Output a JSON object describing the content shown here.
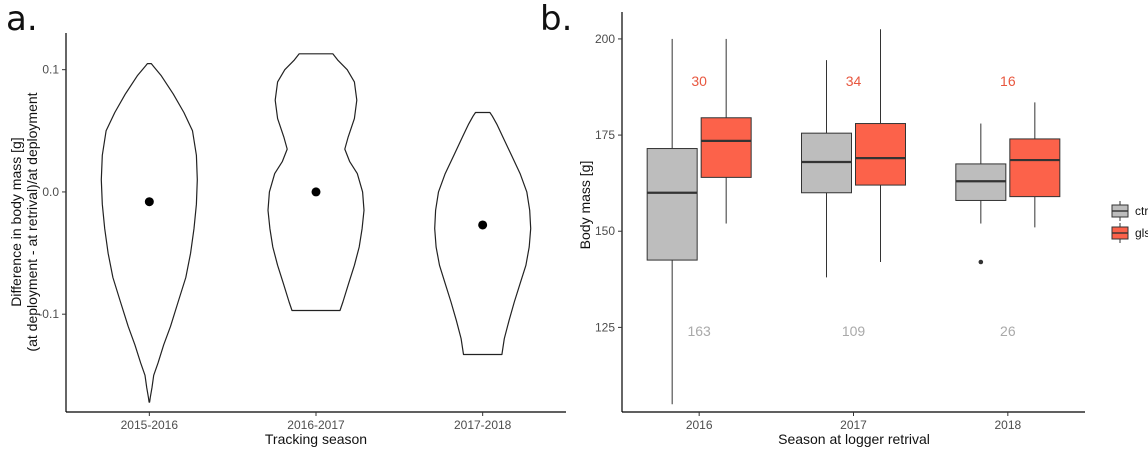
{
  "panels": {
    "a": {
      "letter": "a.",
      "chart_data": {
        "type": "violin",
        "xlabel": "Tracking season",
        "ylabel_line1": "Difference in body mass [g]",
        "ylabel_line2": "(at deployment - at retrival)/at deployment",
        "ylim": [
          -0.18,
          0.13
        ],
        "yticks": [
          0.1,
          0.0,
          -0.1
        ],
        "ytick_labels": [
          "0.1",
          "0.0",
          "-0.1"
        ],
        "categories": [
          "2015-2016",
          "2016-2017",
          "2017-2018"
        ],
        "violins": [
          {
            "min": -0.172,
            "max": 0.105,
            "median": -0.008,
            "profile": [
              [
                -0.172,
                0.005
              ],
              [
                -0.168,
                0.02
              ],
              [
                -0.16,
                0.055
              ],
              [
                -0.15,
                0.09
              ],
              [
                -0.14,
                0.18
              ],
              [
                -0.125,
                0.3
              ],
              [
                -0.11,
                0.44
              ],
              [
                -0.09,
                0.6
              ],
              [
                -0.07,
                0.76
              ],
              [
                -0.05,
                0.86
              ],
              [
                -0.03,
                0.93
              ],
              [
                -0.01,
                0.98
              ],
              [
                0.01,
                1.0
              ],
              [
                0.03,
                0.98
              ],
              [
                0.05,
                0.9
              ],
              [
                0.065,
                0.72
              ],
              [
                0.08,
                0.5
              ],
              [
                0.095,
                0.25
              ],
              [
                0.103,
                0.08
              ],
              [
                0.105,
                0.04
              ]
            ]
          },
          {
            "min": -0.097,
            "max": 0.113,
            "median": 0.0,
            "profile": [
              [
                -0.097,
                0.5
              ],
              [
                -0.09,
                0.56
              ],
              [
                -0.075,
                0.68
              ],
              [
                -0.06,
                0.8
              ],
              [
                -0.045,
                0.9
              ],
              [
                -0.03,
                0.96
              ],
              [
                -0.015,
                1.0
              ],
              [
                0.0,
                0.97
              ],
              [
                0.015,
                0.86
              ],
              [
                0.025,
                0.7
              ],
              [
                0.035,
                0.6
              ],
              [
                0.045,
                0.67
              ],
              [
                0.06,
                0.8
              ],
              [
                0.075,
                0.85
              ],
              [
                0.09,
                0.8
              ],
              [
                0.1,
                0.65
              ],
              [
                0.108,
                0.45
              ],
              [
                0.113,
                0.35
              ]
            ]
          },
          {
            "min": -0.133,
            "max": 0.065,
            "median": -0.027,
            "profile": [
              [
                -0.133,
                0.4
              ],
              [
                -0.12,
                0.45
              ],
              [
                -0.105,
                0.55
              ],
              [
                -0.09,
                0.66
              ],
              [
                -0.075,
                0.78
              ],
              [
                -0.06,
                0.9
              ],
              [
                -0.045,
                0.97
              ],
              [
                -0.03,
                1.0
              ],
              [
                -0.015,
                0.98
              ],
              [
                0.0,
                0.92
              ],
              [
                0.015,
                0.78
              ],
              [
                0.03,
                0.6
              ],
              [
                0.045,
                0.42
              ],
              [
                0.055,
                0.3
              ],
              [
                0.062,
                0.2
              ],
              [
                0.065,
                0.15
              ]
            ]
          }
        ]
      }
    },
    "b": {
      "letter": "b.",
      "chart_data": {
        "type": "box",
        "xlabel": "Season at logger retrival",
        "ylabel": "Body mass [g]",
        "ylim": [
          103,
          207
        ],
        "yticks": [
          125,
          150,
          175,
          200
        ],
        "ytick_labels": [
          "125",
          "150",
          "175",
          "200"
        ],
        "categories": [
          "2016",
          "2017",
          "2018"
        ],
        "series": [
          {
            "name": "ctrl",
            "color": "#bdbdbd",
            "boxes": [
              {
                "whisker_low": 105,
                "q1": 142.5,
                "median": 160,
                "q3": 171.5,
                "whisker_high": 200,
                "outliers": []
              },
              {
                "whisker_low": 138,
                "q1": 160,
                "median": 168,
                "q3": 175.5,
                "whisker_high": 194.5,
                "outliers": []
              },
              {
                "whisker_low": 152,
                "q1": 158,
                "median": 163,
                "q3": 167.5,
                "whisker_high": 178,
                "outliers": [
                  142
                ]
              }
            ]
          },
          {
            "name": "gls",
            "color": "#fc624a",
            "boxes": [
              {
                "whisker_low": 152,
                "q1": 164,
                "median": 173.5,
                "q3": 179.5,
                "whisker_high": 200,
                "outliers": []
              },
              {
                "whisker_low": 142,
                "q1": 162,
                "median": 169,
                "q3": 178,
                "whisker_high": 202.5,
                "outliers": []
              },
              {
                "whisker_low": 151,
                "q1": 159,
                "median": 168.5,
                "q3": 174,
                "whisker_high": 183.5,
                "outliers": []
              }
            ]
          }
        ],
        "gls_counts": [
          "30",
          "34",
          "16"
        ],
        "ctrl_counts": [
          "163",
          "109",
          "26"
        ],
        "gls_count_y": 189,
        "ctrl_count_y": 124,
        "legend": {
          "position": "right",
          "items": [
            "ctrl",
            "gls"
          ]
        }
      }
    }
  }
}
